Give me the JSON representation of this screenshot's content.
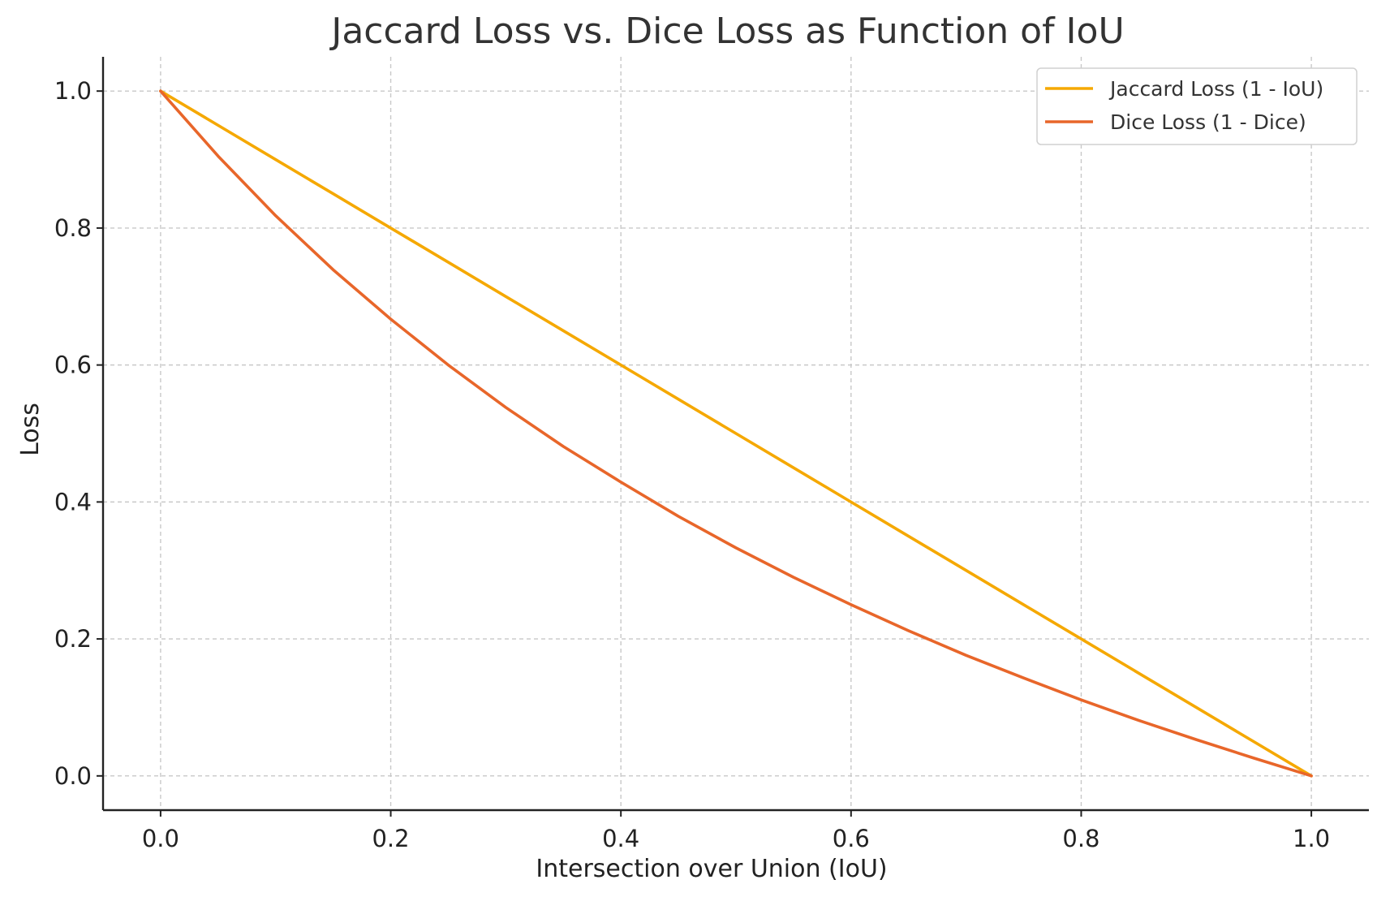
{
  "chart_data": {
    "type": "line",
    "title": "Jaccard Loss vs. Dice Loss as Function of IoU",
    "xlabel": "Intersection over Union (IoU)",
    "ylabel": "Loss",
    "xlim": [
      -0.05,
      1.05
    ],
    "ylim": [
      -0.05,
      1.05
    ],
    "grid": true,
    "legend_position": "top-right",
    "xticks": [
      0.0,
      0.2,
      0.4,
      0.6,
      0.8,
      1.0
    ],
    "xtick_labels": [
      "0.0",
      "0.2",
      "0.4",
      "0.6",
      "0.8",
      "1.0"
    ],
    "yticks": [
      0.0,
      0.2,
      0.4,
      0.6,
      0.8,
      1.0
    ],
    "ytick_labels": [
      "0.0",
      "0.2",
      "0.4",
      "0.6",
      "0.8",
      "1.0"
    ],
    "x": [
      0.0,
      0.05,
      0.1,
      0.15,
      0.2,
      0.25,
      0.3,
      0.35,
      0.4,
      0.45,
      0.5,
      0.55,
      0.6,
      0.65,
      0.7,
      0.75,
      0.8,
      0.85,
      0.9,
      0.95,
      1.0
    ],
    "series": [
      {
        "name": "Jaccard Loss (1 - IoU)",
        "color": "#f5a800",
        "values": [
          1.0,
          0.95,
          0.9,
          0.85,
          0.8,
          0.75,
          0.7,
          0.65,
          0.6,
          0.55,
          0.5,
          0.45,
          0.4,
          0.35,
          0.3,
          0.25,
          0.2,
          0.15,
          0.1,
          0.05,
          0.0
        ]
      },
      {
        "name": "Dice Loss (1 - Dice)",
        "color": "#e8662a",
        "values": [
          1.0,
          0.905,
          0.818,
          0.739,
          0.667,
          0.6,
          0.538,
          0.481,
          0.429,
          0.379,
          0.333,
          0.29,
          0.25,
          0.212,
          0.176,
          0.143,
          0.111,
          0.081,
          0.053,
          0.026,
          0.0
        ]
      }
    ]
  }
}
